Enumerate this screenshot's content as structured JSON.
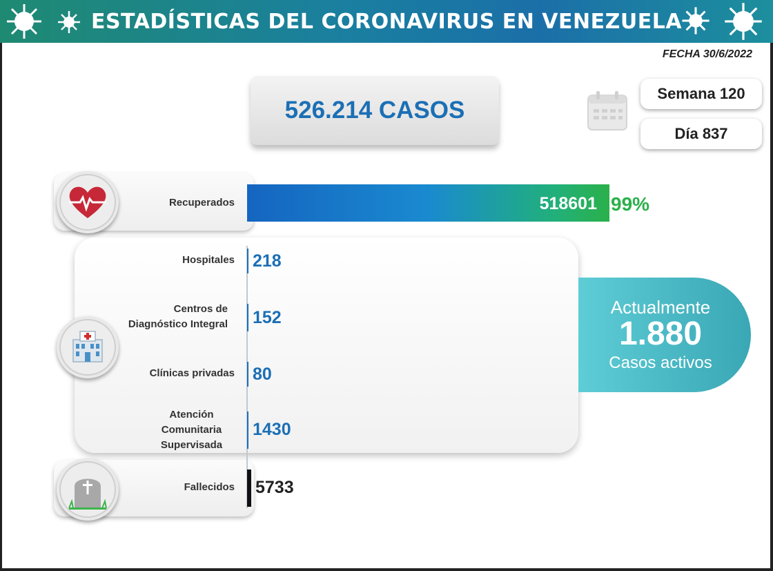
{
  "header": {
    "title": "ESTADÍSTICAS DEL CORONAVIRUS EN VENEZUELA"
  },
  "date": "FECHA 30/6/2022",
  "total_cases": "526.214 CASOS",
  "week": "Semana 120",
  "day": "Día 837",
  "active": {
    "label_top": "Actualmente",
    "value": "1.880",
    "label_bottom": "Casos activos"
  },
  "colors": {
    "header": "#1a7fa0",
    "blue": "#1b6fb5",
    "green": "#2bb04a",
    "teal": "#3aa7b5"
  },
  "icons": {
    "heart": "heart-icon",
    "hospital": "hospital-icon",
    "tomb": "tombstone-icon",
    "calendar": "calendar-icon",
    "virus": "virus-icon"
  },
  "chart_data": {
    "type": "bar",
    "orientation": "horizontal",
    "categories": [
      "Recuperados",
      "Hospitales",
      "Centros de Diagnóstico Integral",
      "Clínicas privadas",
      "Atención Comunitaria Supervisada",
      "Fallecidos"
    ],
    "values": [
      518601,
      218,
      152,
      80,
      1430,
      5733
    ],
    "value_labels": [
      "518601",
      "218",
      "152",
      "80",
      "1430",
      "5733"
    ],
    "percent_label": "99%",
    "total": 526214
  }
}
